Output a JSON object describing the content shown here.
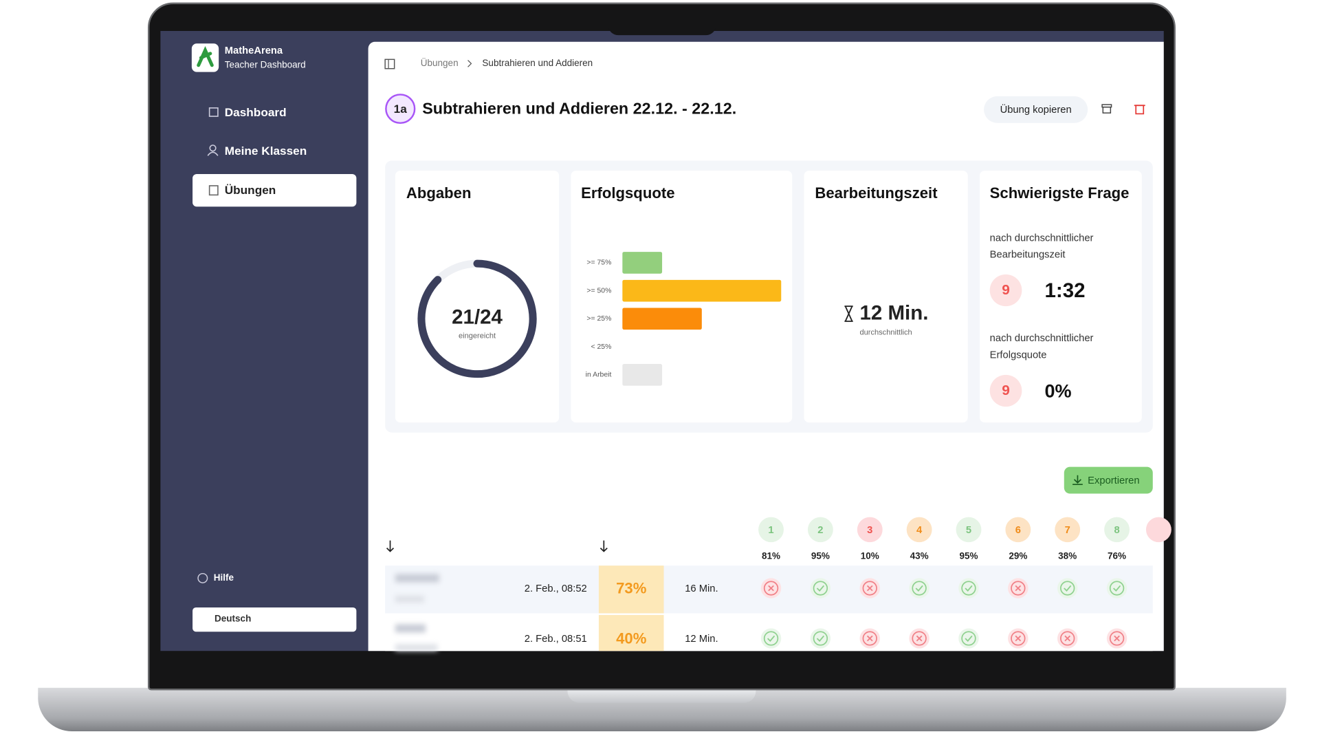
{
  "sidebar": {
    "brand": "MatheArena",
    "subtitle": "Teacher Dashboard",
    "nav": [
      "Dashboard",
      "Meine Klassen",
      "Übungen"
    ],
    "help": "Hilfe",
    "language": "Deutsch"
  },
  "breadcrumb": [
    "Übungen",
    "Subtrahieren und Addieren"
  ],
  "header": {
    "badge": "1a",
    "title": "Subtrahieren und Addieren 22.12. - 22.12.",
    "copy_button": "Übung kopieren"
  },
  "abgaben": {
    "title": "Abgaben",
    "submitted": 21,
    "total": 24,
    "label": "21/24",
    "caption": "eingereicht"
  },
  "chart_data": {
    "type": "bar",
    "orientation": "horizontal",
    "title": "Erfolgsquote",
    "categories": [
      ">= 75%",
      ">= 50%",
      ">= 25%",
      "< 25%",
      "in Arbeit"
    ],
    "values": [
      1,
      4,
      2,
      0,
      1
    ],
    "colors": [
      "#93cf7d",
      "#fbb818",
      "#fb8c0a",
      "#fb8c0a",
      "#e8e8e8"
    ]
  },
  "bearbeitungszeit": {
    "title": "Bearbeitungszeit",
    "value": "12 Min.",
    "caption": "durchschnittlich"
  },
  "schwierigste": {
    "title": "Schwierigste Frage",
    "items": [
      {
        "label": "nach durchschnittlicher Bearbeitungszeit",
        "question": "9",
        "value": "1:32"
      },
      {
        "label": "nach durchschnittlicher Erfolgsquote",
        "question": "9",
        "value": "0%"
      }
    ]
  },
  "export_button": "Exportieren",
  "table": {
    "questions": [
      {
        "number": "1",
        "percent": "81%",
        "status": "green"
      },
      {
        "number": "2",
        "percent": "95%",
        "status": "green"
      },
      {
        "number": "3",
        "percent": "10%",
        "status": "red"
      },
      {
        "number": "4",
        "percent": "43%",
        "status": "orange"
      },
      {
        "number": "5",
        "percent": "95%",
        "status": "green"
      },
      {
        "number": "6",
        "percent": "29%",
        "status": "orange"
      },
      {
        "number": "7",
        "percent": "38%",
        "status": "orange"
      },
      {
        "number": "8",
        "percent": "76%",
        "status": "green"
      }
    ],
    "rows": [
      {
        "date": "2. Feb., 08:52",
        "score": "73%",
        "time": "16 Min.",
        "results": [
          false,
          true,
          false,
          true,
          true,
          false,
          true,
          true
        ]
      },
      {
        "date": "2. Feb., 08:51",
        "score": "40%",
        "time": "12 Min.",
        "results": [
          true,
          true,
          false,
          false,
          true,
          false,
          false,
          false
        ]
      }
    ]
  }
}
